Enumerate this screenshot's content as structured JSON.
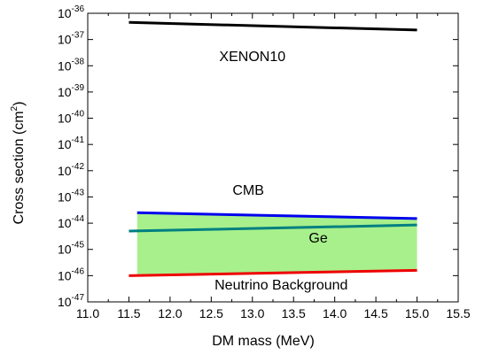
{
  "chart_data": {
    "type": "line",
    "title": "",
    "xlabel": "DM mass (MeV)",
    "ylabel_prefix": "Cross section (cm",
    "ylabel_exponent": "2",
    "ylabel_suffix": ")",
    "xlim": [
      11.0,
      15.5
    ],
    "ylim_log10": [
      -47,
      -36
    ],
    "yscale": "log",
    "grid": false,
    "x_ticks": [
      {
        "value": 11.0,
        "label": "11.0"
      },
      {
        "value": 11.5,
        "label": "11.5"
      },
      {
        "value": 12.0,
        "label": "12.0"
      },
      {
        "value": 12.5,
        "label": "12.5"
      },
      {
        "value": 13.0,
        "label": "13.0"
      },
      {
        "value": 13.5,
        "label": "13.5"
      },
      {
        "value": 14.0,
        "label": "14.0"
      },
      {
        "value": 14.5,
        "label": "14.5"
      },
      {
        "value": 15.0,
        "label": "15.0"
      },
      {
        "value": 15.5,
        "label": "15.5"
      }
    ],
    "y_ticks": [
      {
        "exp": -36,
        "base": "10",
        "sup": "-36"
      },
      {
        "exp": -37,
        "base": "10",
        "sup": "-37"
      },
      {
        "exp": -38,
        "base": "10",
        "sup": "-38"
      },
      {
        "exp": -39,
        "base": "10",
        "sup": "-39"
      },
      {
        "exp": -40,
        "base": "10",
        "sup": "-40"
      },
      {
        "exp": -41,
        "base": "10",
        "sup": "-41"
      },
      {
        "exp": -42,
        "base": "10",
        "sup": "-42"
      },
      {
        "exp": -43,
        "base": "10",
        "sup": "-43"
      },
      {
        "exp": -44,
        "base": "10",
        "sup": "-44"
      },
      {
        "exp": -45,
        "base": "10",
        "sup": "-45"
      },
      {
        "exp": -46,
        "base": "10",
        "sup": "-46"
      },
      {
        "exp": -47,
        "base": "10",
        "sup": "-47"
      }
    ],
    "shaded_region": {
      "color": "#a8f08c",
      "x": [
        11.6,
        15.0
      ],
      "lower": [
        1e-46,
        1.5e-46
      ],
      "upper": [
        2.5e-44,
        1.5e-44
      ]
    },
    "series": [
      {
        "key": "xenon10",
        "color": "#000000",
        "x": [
          11.5,
          15.0
        ],
        "y": [
          4.5e-37,
          2.3e-37
        ]
      },
      {
        "key": "cmb",
        "color": "#0000ee",
        "x": [
          11.6,
          15.0
        ],
        "y": [
          2.5e-44,
          1.5e-44
        ]
      },
      {
        "key": "ge",
        "color": "#008080",
        "x": [
          11.5,
          15.0
        ],
        "y": [
          5e-45,
          8.5e-45
        ]
      },
      {
        "key": "neutrino",
        "color": "#ee0000",
        "x": [
          11.5,
          15.0
        ],
        "y": [
          1e-46,
          1.6e-46
        ]
      }
    ],
    "annotations": [
      {
        "key": "xenon10",
        "text": "XENON10",
        "x": 13.0,
        "y": 1.5e-38
      },
      {
        "key": "cmb",
        "text": "CMB",
        "x": 12.95,
        "y": 1.2e-43
      },
      {
        "key": "ge",
        "text": "Ge",
        "x": 13.8,
        "y": 1.8e-45
      },
      {
        "key": "neutrino",
        "text": "Neutrino Background",
        "x": 13.35,
        "y": 3e-47
      }
    ]
  }
}
